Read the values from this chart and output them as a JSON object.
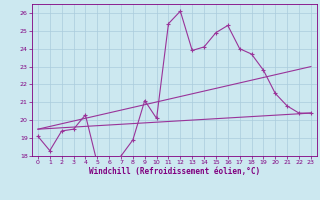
{
  "xlabel": "Windchill (Refroidissement éolien,°C)",
  "background_color": "#cce8f0",
  "grid_color": "#aaccdd",
  "line_color": "#993399",
  "xlim": [
    -0.5,
    23.5
  ],
  "ylim": [
    18,
    26.5
  ],
  "yticks": [
    18,
    19,
    20,
    21,
    22,
    23,
    24,
    25,
    26
  ],
  "xticks": [
    0,
    1,
    2,
    3,
    4,
    5,
    6,
    7,
    8,
    9,
    10,
    11,
    12,
    13,
    14,
    15,
    16,
    17,
    18,
    19,
    20,
    21,
    22,
    23
  ],
  "series1_x": [
    0,
    1,
    2,
    3,
    4,
    5,
    6,
    7,
    8,
    9,
    10,
    11,
    12,
    13,
    14,
    15,
    16,
    17,
    18,
    19,
    20,
    21,
    22,
    23
  ],
  "series1_y": [
    19.1,
    18.3,
    19.4,
    19.5,
    20.3,
    17.6,
    17.6,
    18.0,
    18.9,
    21.1,
    20.1,
    25.4,
    26.1,
    23.9,
    24.1,
    24.9,
    25.3,
    24.0,
    23.7,
    22.8,
    21.5,
    20.8,
    20.4,
    20.4
  ],
  "trend1_x": [
    0,
    23
  ],
  "trend1_y": [
    19.5,
    23.0
  ],
  "trend2_x": [
    0,
    23
  ],
  "trend2_y": [
    19.5,
    20.4
  ],
  "font_color": "#800080",
  "tick_fontsize": 4.5,
  "label_fontsize": 5.5
}
